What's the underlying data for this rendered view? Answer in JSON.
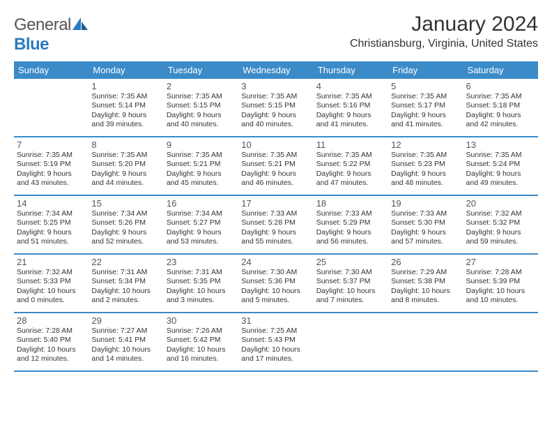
{
  "brand": {
    "general": "General",
    "blue": "Blue"
  },
  "title": "January 2024",
  "subtitle": "Christiansburg, Virginia, United States",
  "colors": {
    "header_bg": "#3b8bc8",
    "header_fg": "#ffffff",
    "brand_gray": "#555555",
    "brand_blue": "#2a7abf",
    "text": "#333333",
    "rule": "#3b8bc8"
  },
  "day_names": [
    "Sunday",
    "Monday",
    "Tuesday",
    "Wednesday",
    "Thursday",
    "Friday",
    "Saturday"
  ],
  "weeks": [
    [
      null,
      {
        "n": "1",
        "sr": "Sunrise: 7:35 AM",
        "ss": "Sunset: 5:14 PM",
        "d1": "Daylight: 9 hours",
        "d2": "and 39 minutes."
      },
      {
        "n": "2",
        "sr": "Sunrise: 7:35 AM",
        "ss": "Sunset: 5:15 PM",
        "d1": "Daylight: 9 hours",
        "d2": "and 40 minutes."
      },
      {
        "n": "3",
        "sr": "Sunrise: 7:35 AM",
        "ss": "Sunset: 5:15 PM",
        "d1": "Daylight: 9 hours",
        "d2": "and 40 minutes."
      },
      {
        "n": "4",
        "sr": "Sunrise: 7:35 AM",
        "ss": "Sunset: 5:16 PM",
        "d1": "Daylight: 9 hours",
        "d2": "and 41 minutes."
      },
      {
        "n": "5",
        "sr": "Sunrise: 7:35 AM",
        "ss": "Sunset: 5:17 PM",
        "d1": "Daylight: 9 hours",
        "d2": "and 41 minutes."
      },
      {
        "n": "6",
        "sr": "Sunrise: 7:35 AM",
        "ss": "Sunset: 5:18 PM",
        "d1": "Daylight: 9 hours",
        "d2": "and 42 minutes."
      }
    ],
    [
      {
        "n": "7",
        "sr": "Sunrise: 7:35 AM",
        "ss": "Sunset: 5:19 PM",
        "d1": "Daylight: 9 hours",
        "d2": "and 43 minutes."
      },
      {
        "n": "8",
        "sr": "Sunrise: 7:35 AM",
        "ss": "Sunset: 5:20 PM",
        "d1": "Daylight: 9 hours",
        "d2": "and 44 minutes."
      },
      {
        "n": "9",
        "sr": "Sunrise: 7:35 AM",
        "ss": "Sunset: 5:21 PM",
        "d1": "Daylight: 9 hours",
        "d2": "and 45 minutes."
      },
      {
        "n": "10",
        "sr": "Sunrise: 7:35 AM",
        "ss": "Sunset: 5:21 PM",
        "d1": "Daylight: 9 hours",
        "d2": "and 46 minutes."
      },
      {
        "n": "11",
        "sr": "Sunrise: 7:35 AM",
        "ss": "Sunset: 5:22 PM",
        "d1": "Daylight: 9 hours",
        "d2": "and 47 minutes."
      },
      {
        "n": "12",
        "sr": "Sunrise: 7:35 AM",
        "ss": "Sunset: 5:23 PM",
        "d1": "Daylight: 9 hours",
        "d2": "and 48 minutes."
      },
      {
        "n": "13",
        "sr": "Sunrise: 7:35 AM",
        "ss": "Sunset: 5:24 PM",
        "d1": "Daylight: 9 hours",
        "d2": "and 49 minutes."
      }
    ],
    [
      {
        "n": "14",
        "sr": "Sunrise: 7:34 AM",
        "ss": "Sunset: 5:25 PM",
        "d1": "Daylight: 9 hours",
        "d2": "and 51 minutes."
      },
      {
        "n": "15",
        "sr": "Sunrise: 7:34 AM",
        "ss": "Sunset: 5:26 PM",
        "d1": "Daylight: 9 hours",
        "d2": "and 52 minutes."
      },
      {
        "n": "16",
        "sr": "Sunrise: 7:34 AM",
        "ss": "Sunset: 5:27 PM",
        "d1": "Daylight: 9 hours",
        "d2": "and 53 minutes."
      },
      {
        "n": "17",
        "sr": "Sunrise: 7:33 AM",
        "ss": "Sunset: 5:28 PM",
        "d1": "Daylight: 9 hours",
        "d2": "and 55 minutes."
      },
      {
        "n": "18",
        "sr": "Sunrise: 7:33 AM",
        "ss": "Sunset: 5:29 PM",
        "d1": "Daylight: 9 hours",
        "d2": "and 56 minutes."
      },
      {
        "n": "19",
        "sr": "Sunrise: 7:33 AM",
        "ss": "Sunset: 5:30 PM",
        "d1": "Daylight: 9 hours",
        "d2": "and 57 minutes."
      },
      {
        "n": "20",
        "sr": "Sunrise: 7:32 AM",
        "ss": "Sunset: 5:32 PM",
        "d1": "Daylight: 9 hours",
        "d2": "and 59 minutes."
      }
    ],
    [
      {
        "n": "21",
        "sr": "Sunrise: 7:32 AM",
        "ss": "Sunset: 5:33 PM",
        "d1": "Daylight: 10 hours",
        "d2": "and 0 minutes."
      },
      {
        "n": "22",
        "sr": "Sunrise: 7:31 AM",
        "ss": "Sunset: 5:34 PM",
        "d1": "Daylight: 10 hours",
        "d2": "and 2 minutes."
      },
      {
        "n": "23",
        "sr": "Sunrise: 7:31 AM",
        "ss": "Sunset: 5:35 PM",
        "d1": "Daylight: 10 hours",
        "d2": "and 3 minutes."
      },
      {
        "n": "24",
        "sr": "Sunrise: 7:30 AM",
        "ss": "Sunset: 5:36 PM",
        "d1": "Daylight: 10 hours",
        "d2": "and 5 minutes."
      },
      {
        "n": "25",
        "sr": "Sunrise: 7:30 AM",
        "ss": "Sunset: 5:37 PM",
        "d1": "Daylight: 10 hours",
        "d2": "and 7 minutes."
      },
      {
        "n": "26",
        "sr": "Sunrise: 7:29 AM",
        "ss": "Sunset: 5:38 PM",
        "d1": "Daylight: 10 hours",
        "d2": "and 8 minutes."
      },
      {
        "n": "27",
        "sr": "Sunrise: 7:28 AM",
        "ss": "Sunset: 5:39 PM",
        "d1": "Daylight: 10 hours",
        "d2": "and 10 minutes."
      }
    ],
    [
      {
        "n": "28",
        "sr": "Sunrise: 7:28 AM",
        "ss": "Sunset: 5:40 PM",
        "d1": "Daylight: 10 hours",
        "d2": "and 12 minutes."
      },
      {
        "n": "29",
        "sr": "Sunrise: 7:27 AM",
        "ss": "Sunset: 5:41 PM",
        "d1": "Daylight: 10 hours",
        "d2": "and 14 minutes."
      },
      {
        "n": "30",
        "sr": "Sunrise: 7:26 AM",
        "ss": "Sunset: 5:42 PM",
        "d1": "Daylight: 10 hours",
        "d2": "and 16 minutes."
      },
      {
        "n": "31",
        "sr": "Sunrise: 7:25 AM",
        "ss": "Sunset: 5:43 PM",
        "d1": "Daylight: 10 hours",
        "d2": "and 17 minutes."
      },
      null,
      null,
      null
    ]
  ]
}
